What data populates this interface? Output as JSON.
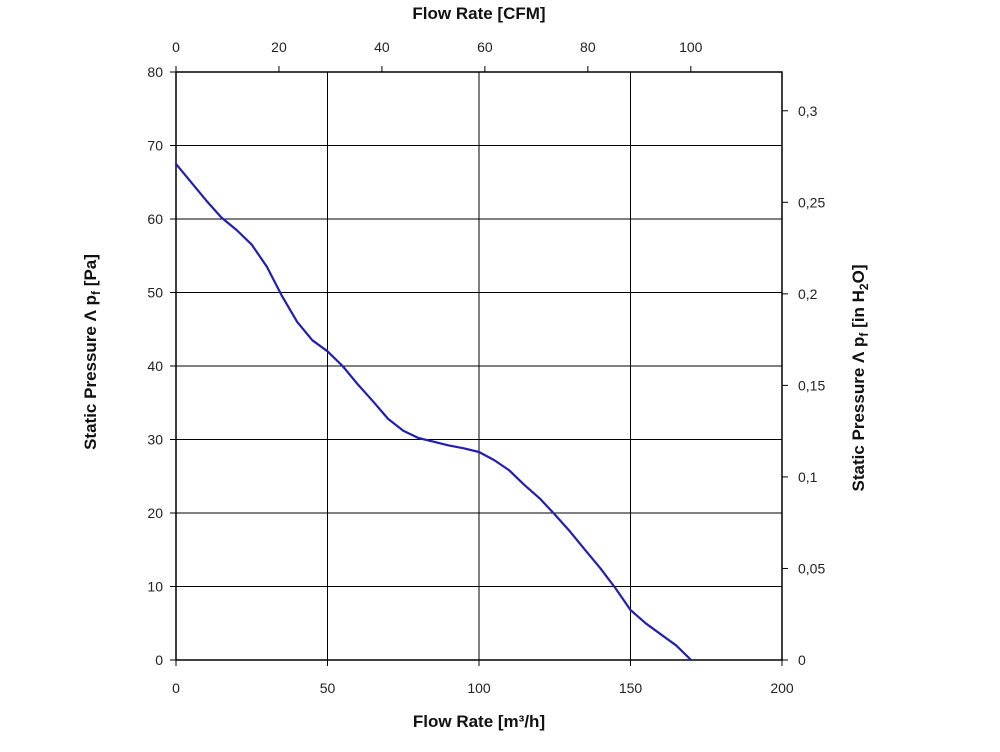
{
  "chart_data": {
    "type": "line",
    "x_bottom": {
      "label": "Flow Rate [m³/h]",
      "range": [
        0,
        200
      ],
      "ticks": [
        "0",
        "50",
        "100",
        "150",
        "200"
      ],
      "tick_values": [
        0,
        50,
        100,
        150,
        200
      ]
    },
    "x_top": {
      "label": "Flow Rate [CFM]",
      "ticks": [
        "0",
        "20",
        "40",
        "60",
        "80",
        "100"
      ],
      "tick_values": [
        0,
        20,
        40,
        60,
        80,
        100
      ]
    },
    "y_left": {
      "label": "Static Pressure Λ pf [Pa]",
      "label_parts": {
        "main": "Static Pressure Λ p",
        "sub": "f",
        "tail": " [Pa]"
      },
      "range": [
        0,
        80
      ],
      "ticks": [
        "0",
        "10",
        "20",
        "30",
        "40",
        "50",
        "60",
        "70",
        "80"
      ],
      "tick_values": [
        0,
        10,
        20,
        30,
        40,
        50,
        60,
        70,
        80
      ]
    },
    "y_right": {
      "label": "Static Pressure Λ pf [in H2O]",
      "label_parts": {
        "main": "Static Pressure Λ p",
        "sub": "f",
        "mid": " [in H",
        "sub2": "2",
        "tail": "O]"
      },
      "ticks": [
        "0",
        "0,05",
        "0,1",
        "0,15",
        "0,2",
        "0,25",
        "0,3"
      ],
      "tick_values": [
        0,
        0.05,
        0.1,
        0.15,
        0.2,
        0.25,
        0.3
      ]
    },
    "grid": true,
    "line_color": "#1f1fb4",
    "series": [
      {
        "x": [
          0,
          5,
          10,
          15,
          20,
          25,
          30,
          35,
          40,
          45,
          50,
          55,
          60,
          65,
          70,
          75,
          80,
          85,
          90,
          95,
          100,
          105,
          110,
          115,
          120,
          125,
          130,
          135,
          140,
          145,
          150,
          155,
          160,
          165,
          170
        ],
        "y": [
          67.5,
          65,
          62.5,
          60.2,
          58.5,
          56.5,
          53.5,
          49.5,
          46,
          43.5,
          42,
          40,
          37.5,
          35.2,
          32.8,
          31.2,
          30.2,
          29.7,
          29.2,
          28.8,
          28.3,
          27.2,
          25.8,
          23.8,
          22,
          19.8,
          17.5,
          15,
          12.5,
          9.8,
          6.8,
          5,
          3.5,
          2,
          0
        ]
      }
    ]
  }
}
